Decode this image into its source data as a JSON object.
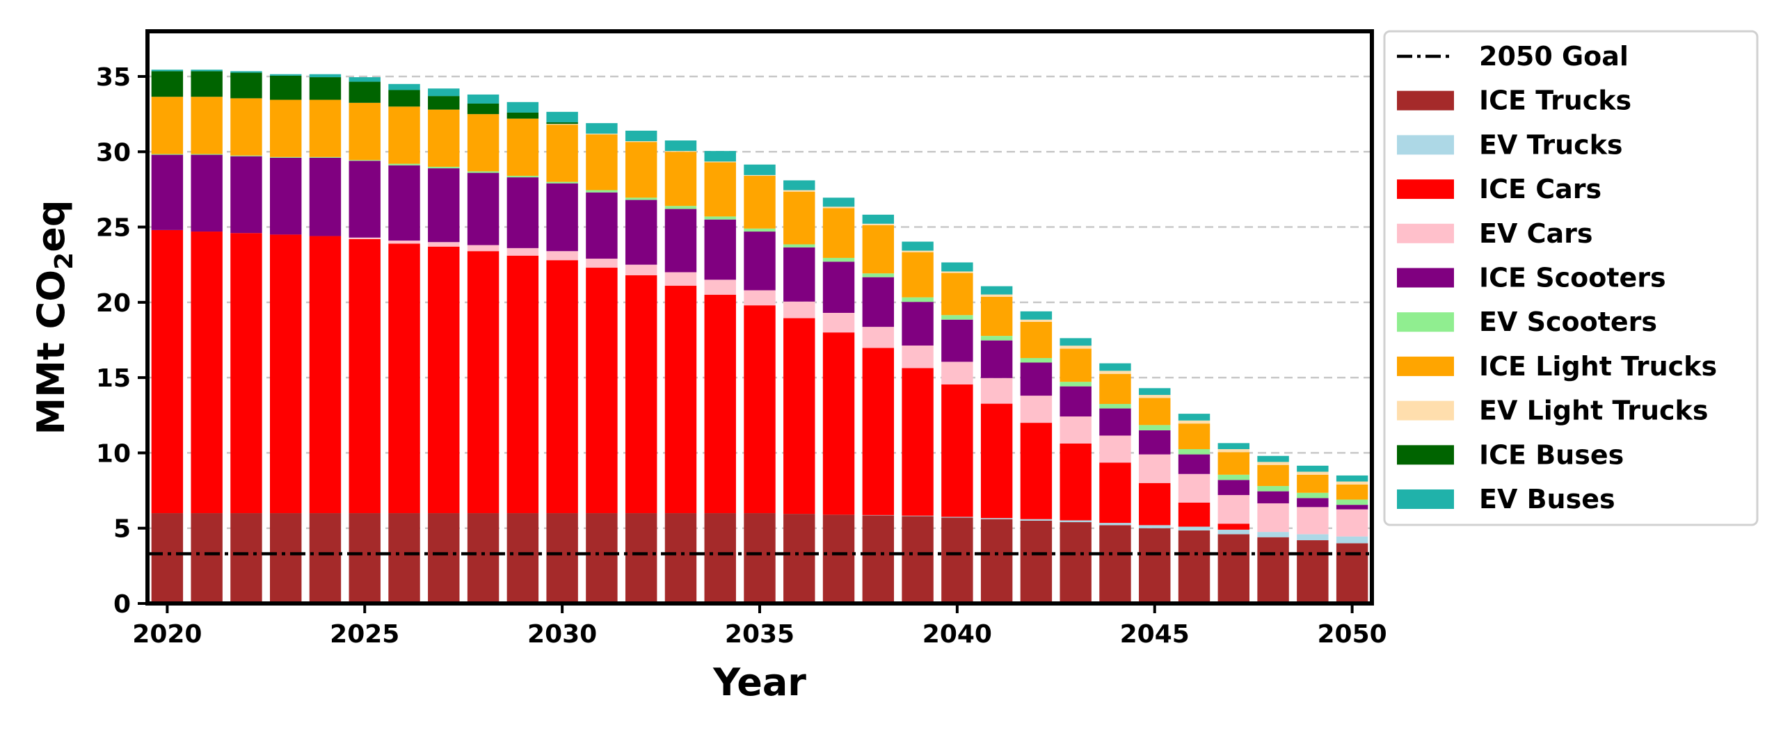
{
  "chart_data": {
    "type": "bar",
    "stacked": true,
    "xlabel": "Year",
    "ylabel_main": "MMt CO",
    "ylabel_sub": "2",
    "ylabel_tail": "eq",
    "ylim": [
      0,
      38
    ],
    "yticks": [
      0,
      5,
      10,
      15,
      20,
      25,
      30,
      35
    ],
    "xticks": [
      2020,
      2025,
      2030,
      2035,
      2040,
      2045,
      2050
    ],
    "grid": "horizontal dashed",
    "legend_position": "right",
    "goal_line": {
      "name": "2050 Goal",
      "value": 3.3,
      "color": "#000000",
      "style": "dash-dot"
    },
    "x": [
      2020,
      2021,
      2022,
      2023,
      2024,
      2025,
      2026,
      2027,
      2028,
      2029,
      2030,
      2031,
      2032,
      2033,
      2034,
      2035,
      2036,
      2037,
      2038,
      2039,
      2040,
      2041,
      2042,
      2043,
      2044,
      2045,
      2046,
      2047,
      2048,
      2049,
      2050
    ],
    "series": [
      {
        "name": "ICE Trucks",
        "color": "#a52a2a",
        "values": [
          6.0,
          6.0,
          6.0,
          6.0,
          6.0,
          6.0,
          6.0,
          6.0,
          6.0,
          6.0,
          6.0,
          6.0,
          6.0,
          6.0,
          6.0,
          6.0,
          5.95,
          5.9,
          5.85,
          5.8,
          5.7,
          5.6,
          5.5,
          5.4,
          5.2,
          5.0,
          4.85,
          4.6,
          4.4,
          4.2,
          4.0
        ]
      },
      {
        "name": "EV Trucks",
        "color": "#add8e6",
        "values": [
          0,
          0,
          0,
          0,
          0,
          0,
          0,
          0,
          0,
          0,
          0,
          0,
          0,
          0,
          0,
          0,
          0,
          0,
          0.02,
          0.03,
          0.05,
          0.07,
          0.1,
          0.12,
          0.15,
          0.2,
          0.25,
          0.3,
          0.35,
          0.4,
          0.45
        ]
      },
      {
        "name": "ICE Cars",
        "color": "#ff0000",
        "values": [
          18.8,
          18.7,
          18.6,
          18.5,
          18.4,
          18.2,
          17.9,
          17.7,
          17.4,
          17.1,
          16.8,
          16.3,
          15.8,
          15.1,
          14.5,
          13.8,
          13.0,
          12.1,
          11.1,
          9.8,
          8.8,
          7.6,
          6.4,
          5.1,
          4.0,
          2.8,
          1.6,
          0.4,
          0,
          0,
          0
        ]
      },
      {
        "name": "EV Cars",
        "color": "#ffc0cb",
        "values": [
          0,
          0,
          0,
          0,
          0,
          0.1,
          0.2,
          0.3,
          0.4,
          0.5,
          0.6,
          0.6,
          0.7,
          0.9,
          1.0,
          1.0,
          1.1,
          1.3,
          1.4,
          1.5,
          1.5,
          1.7,
          1.8,
          1.8,
          1.8,
          1.9,
          1.9,
          1.9,
          1.9,
          1.8,
          1.8
        ]
      },
      {
        "name": "ICE Scooters",
        "color": "#800080",
        "values": [
          5.0,
          5.1,
          5.1,
          5.1,
          5.2,
          5.1,
          5.0,
          4.9,
          4.8,
          4.7,
          4.5,
          4.4,
          4.3,
          4.2,
          4.0,
          3.9,
          3.6,
          3.4,
          3.3,
          2.9,
          2.8,
          2.5,
          2.2,
          2.0,
          1.8,
          1.6,
          1.3,
          1.0,
          0.8,
          0.6,
          0.3
        ]
      },
      {
        "name": "EV Scooters",
        "color": "#90ee90",
        "values": [
          0.05,
          0.05,
          0.05,
          0.05,
          0.05,
          0.05,
          0.1,
          0.1,
          0.1,
          0.1,
          0.1,
          0.15,
          0.15,
          0.2,
          0.2,
          0.2,
          0.2,
          0.25,
          0.25,
          0.3,
          0.3,
          0.3,
          0.3,
          0.3,
          0.3,
          0.35,
          0.35,
          0.35,
          0.35,
          0.35,
          0.35
        ]
      },
      {
        "name": "ICE Light Trucks",
        "color": "#ffa500",
        "values": [
          3.8,
          3.8,
          3.8,
          3.8,
          3.8,
          3.8,
          3.8,
          3.8,
          3.8,
          3.8,
          3.8,
          3.7,
          3.7,
          3.6,
          3.6,
          3.5,
          3.5,
          3.3,
          3.2,
          3.0,
          2.8,
          2.6,
          2.4,
          2.2,
          2.0,
          1.8,
          1.7,
          1.5,
          1.4,
          1.2,
          1.0
        ]
      },
      {
        "name": "EV Light Trucks",
        "color": "#ffdead",
        "values": [
          0,
          0,
          0,
          0,
          0,
          0,
          0,
          0,
          0,
          0,
          0.05,
          0.05,
          0.05,
          0.05,
          0.05,
          0.05,
          0.1,
          0.1,
          0.1,
          0.1,
          0.1,
          0.15,
          0.15,
          0.2,
          0.2,
          0.2,
          0.2,
          0.2,
          0.2,
          0.2,
          0.2
        ]
      },
      {
        "name": "ICE Buses",
        "color": "#006400",
        "values": [
          1.7,
          1.7,
          1.7,
          1.6,
          1.5,
          1.4,
          1.1,
          0.9,
          0.7,
          0.4,
          0.1,
          0,
          0,
          0,
          0,
          0,
          0,
          0,
          0,
          0,
          0,
          0,
          0,
          0,
          0,
          0,
          0,
          0,
          0,
          0,
          0
        ]
      },
      {
        "name": "EV Buses",
        "color": "#20b2aa",
        "values": [
          0.1,
          0.1,
          0.1,
          0.1,
          0.2,
          0.3,
          0.4,
          0.5,
          0.6,
          0.7,
          0.7,
          0.7,
          0.7,
          0.7,
          0.7,
          0.7,
          0.65,
          0.6,
          0.6,
          0.6,
          0.6,
          0.55,
          0.55,
          0.5,
          0.5,
          0.45,
          0.45,
          0.4,
          0.4,
          0.4,
          0.4
        ]
      }
    ]
  }
}
